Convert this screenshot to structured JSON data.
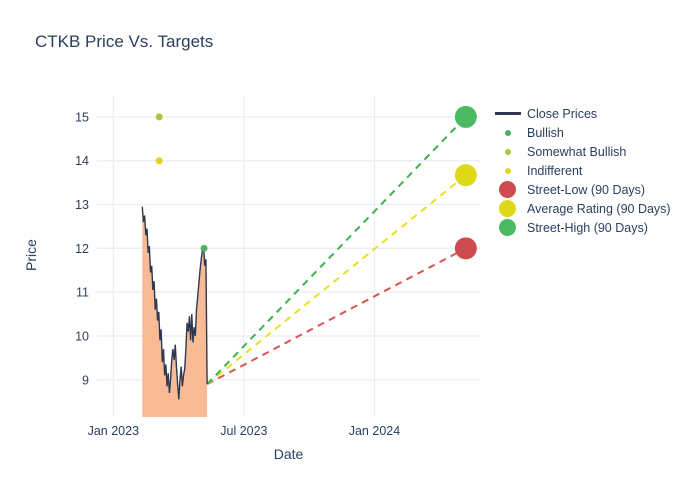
{
  "title": "CTKB Price Vs. Targets",
  "chart_data": {
    "type": "line",
    "title": "CTKB Price Vs. Targets",
    "xlabel": "Date",
    "ylabel": "Price",
    "grid": true,
    "legend_position": "right",
    "x_axis": {
      "unit": "months since Jan 2023",
      "range": [
        -0.75,
        16.85
      ],
      "ticks": [
        {
          "label": "Jan 2023",
          "m": 0
        },
        {
          "label": "Jul 2023",
          "m": 6
        },
        {
          "label": "Jan 2024",
          "m": 12
        }
      ]
    },
    "y_axis": {
      "range": [
        8.15,
        15.5
      ],
      "ticks": [
        9,
        10,
        11,
        12,
        13,
        14,
        15
      ]
    },
    "close_prices": {
      "name": "Close Prices",
      "color": "#2e3950",
      "fill_color": "#f8bb95",
      "x_start_m": 1.33,
      "x_end_m": 4.31,
      "values": [
        12.95,
        12.6,
        12.75,
        12.3,
        12.45,
        11.9,
        12.05,
        11.45,
        11.6,
        11.05,
        11.25,
        10.6,
        10.85,
        10.35,
        10.55,
        9.9,
        10.15,
        9.4,
        9.7,
        9.1,
        9.35,
        8.85,
        9.15,
        8.7,
        9.0,
        9.45,
        9.7,
        9.45,
        9.8,
        9.3,
        8.9,
        8.55,
        9.0,
        9.3,
        8.85,
        9.1,
        9.25,
        9.7,
        10.3,
        10.1,
        10.45,
        9.9,
        10.5,
        9.85,
        10.2,
        10.0,
        10.6,
        10.9,
        11.2,
        11.5,
        11.75,
        11.95,
        12.05,
        11.6,
        11.75,
        8.9
      ]
    },
    "ratings": [
      {
        "name": "Somewhat Bullish",
        "m": 2.11,
        "price": 15,
        "color": "#a8c93c"
      },
      {
        "name": "Indifferent",
        "m": 2.11,
        "price": 14,
        "color": "#e4d31f"
      },
      {
        "name": "Bullish",
        "m": 4.17,
        "price": 12,
        "color": "#4db25e"
      }
    ],
    "projection_origin": {
      "m": 4.31,
      "price": 8.9
    },
    "targets": [
      {
        "name": "Street-Low (90 Days)",
        "m": 16.2,
        "price": 12.0,
        "color": "#cd4a4e",
        "dash_color": "#d9534e"
      },
      {
        "name": "Average Rating (90 Days)",
        "m": 16.2,
        "price": 13.67,
        "color": "#ddd919",
        "dash_color": "#e8e020"
      },
      {
        "name": "Street-High (90 Days)",
        "m": 16.2,
        "price": 15.0,
        "color": "#4cb963",
        "dash_color": "#3fb14c"
      }
    ]
  },
  "legend": {
    "items": [
      {
        "label": "Close Prices",
        "type": "line",
        "color": "#2e3950",
        "size": 26
      },
      {
        "label": "Bullish",
        "type": "dot",
        "color": "#4db25e",
        "size": 6
      },
      {
        "label": "Somewhat Bullish",
        "type": "dot",
        "color": "#a8c93c",
        "size": 6
      },
      {
        "label": "Indifferent",
        "type": "dot",
        "color": "#e4d31f",
        "size": 6
      },
      {
        "label": "Street-Low (90 Days)",
        "type": "dot",
        "color": "#cd4a4e",
        "size": 17
      },
      {
        "label": "Average Rating (90 Days)",
        "type": "dot",
        "color": "#ddd919",
        "size": 17
      },
      {
        "label": "Street-High (90 Days)",
        "type": "dot",
        "color": "#4cb963",
        "size": 17
      }
    ]
  },
  "colors": {
    "text": "#2a3f5f",
    "grid": "#e8eef7",
    "background": "#ffffff"
  }
}
